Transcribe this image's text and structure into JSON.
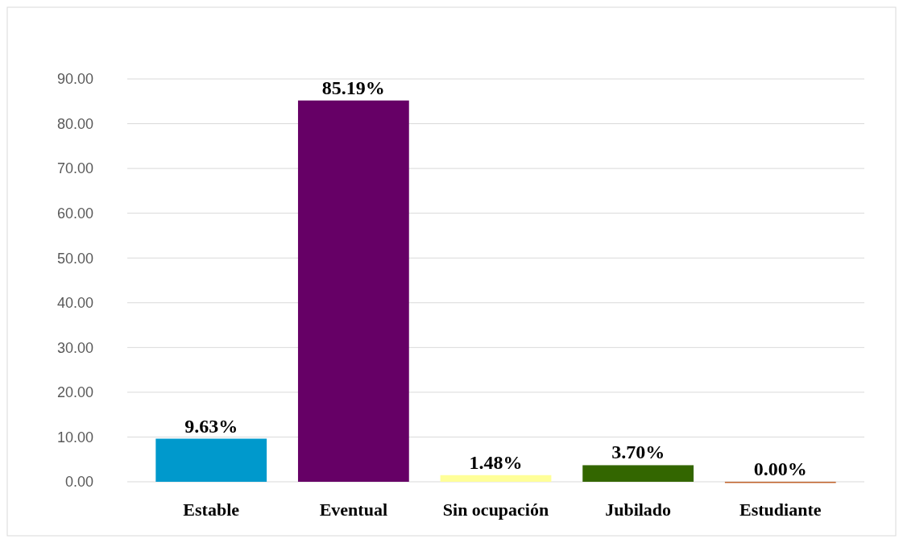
{
  "chart_data": {
    "type": "bar",
    "categories": [
      "Estable",
      "Eventual",
      "Sin ocupación",
      "Jubilado",
      "Estudiante"
    ],
    "values": [
      9.63,
      85.19,
      1.48,
      3.7,
      0.0
    ],
    "colors": [
      "#0099cc",
      "#660066",
      "#ffff99",
      "#336600",
      "#c0622a"
    ],
    "value_labels": [
      "9.63%",
      "85.19%",
      "1.48%",
      "3.70%",
      "0.00%"
    ],
    "ylim": [
      0,
      90
    ],
    "yticks": [
      {
        "value": 0,
        "label": "0.00"
      },
      {
        "value": 10,
        "label": "10.00"
      },
      {
        "value": 20,
        "label": "20.00"
      },
      {
        "value": 30,
        "label": "30.00"
      },
      {
        "value": 40,
        "label": "40.00"
      },
      {
        "value": 50,
        "label": "50.00"
      },
      {
        "value": 60,
        "label": "60.00"
      },
      {
        "value": 70,
        "label": "70.00"
      },
      {
        "value": 80,
        "label": "80.00"
      },
      {
        "value": 90,
        "label": "90.00"
      }
    ],
    "grid": "y"
  }
}
